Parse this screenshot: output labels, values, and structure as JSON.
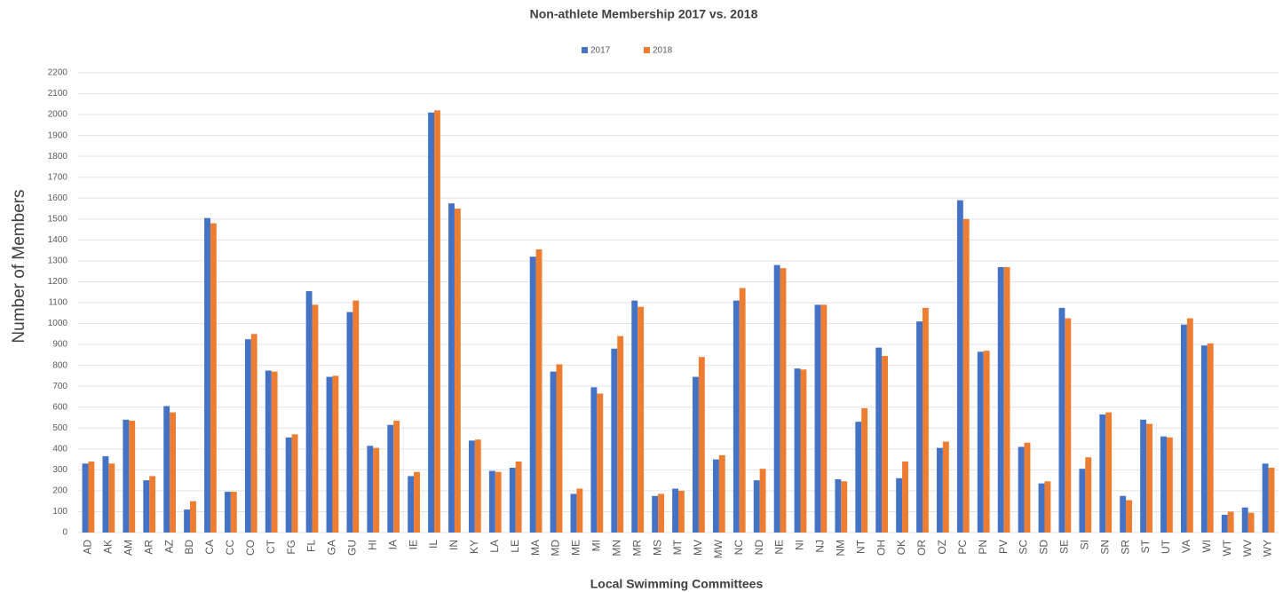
{
  "chart_data": {
    "type": "bar",
    "title": "Non-athlete Membership 2017 vs. 2018",
    "x_label": "Local Swimming Committees",
    "y_label": "Number of Members",
    "categories": [
      "AD",
      "AK",
      "AM",
      "AR",
      "AZ",
      "BD",
      "CA",
      "CC",
      "CO",
      "CT",
      "FG",
      "FL",
      "GA",
      "GU",
      "HI",
      "IA",
      "IE",
      "IL",
      "IN",
      "KY",
      "LA",
      "LE",
      "MA",
      "MD",
      "ME",
      "MI",
      "MN",
      "MR",
      "MS",
      "MT",
      "MV",
      "MW",
      "NC",
      "ND",
      "NE",
      "NI",
      "NJ",
      "NM",
      "NT",
      "OH",
      "OK",
      "OR",
      "OZ",
      "PC",
      "PN",
      "PV",
      "SC",
      "SD",
      "SE",
      "SI",
      "SN",
      "SR",
      "ST",
      "UT",
      "VA",
      "WI",
      "WT",
      "WV",
      "WY"
    ],
    "series": [
      {
        "name": "2017",
        "color": "#4472c4",
        "values": [
          330,
          365,
          540,
          250,
          605,
          110,
          1505,
          195,
          925,
          775,
          455,
          1155,
          745,
          1055,
          415,
          515,
          270,
          2010,
          1575,
          440,
          295,
          310,
          1320,
          770,
          185,
          695,
          880,
          1110,
          175,
          210,
          745,
          350,
          1110,
          250,
          1280,
          785,
          1090,
          255,
          530,
          885,
          260,
          1010,
          405,
          1590,
          865,
          1270,
          410,
          235,
          1075,
          305,
          565,
          175,
          540,
          460,
          995,
          895,
          85,
          120,
          330
        ]
      },
      {
        "name": "2018",
        "color": "#ed7d31",
        "values": [
          340,
          330,
          535,
          270,
          575,
          150,
          1480,
          195,
          950,
          770,
          470,
          1090,
          750,
          1110,
          405,
          535,
          290,
          2020,
          1550,
          445,
          290,
          340,
          1355,
          805,
          210,
          665,
          940,
          1080,
          185,
          200,
          840,
          370,
          1170,
          305,
          1265,
          780,
          1090,
          245,
          595,
          845,
          340,
          1075,
          435,
          1500,
          870,
          1270,
          430,
          245,
          1025,
          360,
          575,
          155,
          520,
          455,
          1025,
          905,
          100,
          95,
          310
        ]
      }
    ],
    "ylim": [
      0,
      2200
    ],
    "yticks": [
      0,
      100,
      200,
      300,
      400,
      500,
      600,
      700,
      800,
      900,
      1000,
      1100,
      1200,
      1300,
      1400,
      1500,
      1600,
      1700,
      1800,
      1900,
      2000,
      2100,
      2200
    ],
    "grid": true,
    "legend": "top"
  }
}
